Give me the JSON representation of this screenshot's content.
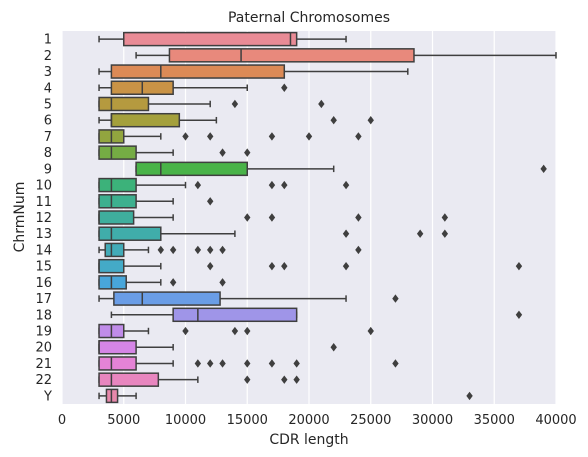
{
  "chart_data": {
    "type": "boxplot",
    "orientation": "horizontal",
    "title": "Paternal Chromosomes",
    "xlabel": "CDR length",
    "ylabel": "ChrmNum",
    "xlim": [
      0,
      40000
    ],
    "xticks": [
      0,
      5000,
      10000,
      15000,
      20000,
      25000,
      30000,
      35000,
      40000
    ],
    "grid": true,
    "background": "#eaeaf2",
    "categories": [
      {
        "label": "1",
        "whislo": 3000,
        "q1": 5000,
        "med": 18500,
        "q3": 19000,
        "whishi": 23000,
        "fliers": [],
        "color": "#e98b96"
      },
      {
        "label": "2",
        "whislo": 6000,
        "q1": 8700,
        "med": 14500,
        "q3": 28500,
        "whishi": 40000,
        "fliers": [],
        "color": "#e8897c"
      },
      {
        "label": "3",
        "whislo": 3000,
        "q1": 4000,
        "med": 8000,
        "q3": 18000,
        "whishi": 28000,
        "fliers": [],
        "color": "#dc8a56"
      },
      {
        "label": "4",
        "whislo": 3000,
        "q1": 4000,
        "med": 6500,
        "q3": 9000,
        "whishi": 15000,
        "fliers": [
          18000
        ],
        "color": "#c99346"
      },
      {
        "label": "5",
        "whislo": 3000,
        "q1": 3000,
        "med": 4000,
        "q3": 7000,
        "whishi": 12000,
        "fliers": [
          14000,
          21000
        ],
        "color": "#b59a3f"
      },
      {
        "label": "6",
        "whislo": 3000,
        "q1": 4000,
        "med": 4000,
        "q3": 9500,
        "whishi": 12500,
        "fliers": [
          22000,
          25000
        ],
        "color": "#a4a03c"
      },
      {
        "label": "7",
        "whislo": 3000,
        "q1": 3000,
        "med": 4000,
        "q3": 5000,
        "whishi": 8000,
        "fliers": [
          10000,
          12000,
          17000,
          20000,
          24000
        ],
        "color": "#92a53f"
      },
      {
        "label": "8",
        "whislo": 3000,
        "q1": 3000,
        "med": 4000,
        "q3": 6000,
        "whishi": 9000,
        "fliers": [
          13000,
          15000
        ],
        "color": "#75ac44"
      },
      {
        "label": "9",
        "whislo": 6000,
        "q1": 6000,
        "med": 8000,
        "q3": 15000,
        "whishi": 22000,
        "fliers": [
          39000
        ],
        "color": "#49b348"
      },
      {
        "label": "10",
        "whislo": 3000,
        "q1": 3000,
        "med": 4000,
        "q3": 6000,
        "whishi": 10000,
        "fliers": [
          11000,
          17000,
          18000,
          23000
        ],
        "color": "#3cb27a"
      },
      {
        "label": "11",
        "whislo": 3000,
        "q1": 3000,
        "med": 4000,
        "q3": 6000,
        "whishi": 9000,
        "fliers": [
          12000
        ],
        "color": "#3db08f"
      },
      {
        "label": "12",
        "whislo": 3000,
        "q1": 3000,
        "med": 3000,
        "q3": 5800,
        "whishi": 9000,
        "fliers": [
          15000,
          17000,
          24000,
          31000
        ],
        "color": "#3fae9d"
      },
      {
        "label": "13",
        "whislo": 3000,
        "q1": 3000,
        "med": 4000,
        "q3": 8000,
        "whishi": 14000,
        "fliers": [
          23000,
          29000,
          31000
        ],
        "color": "#40adaa"
      },
      {
        "label": "14",
        "whislo": 3000,
        "q1": 3500,
        "med": 4000,
        "q3": 5000,
        "whishi": 7000,
        "fliers": [
          8000,
          9000,
          11000,
          12000,
          13000,
          24000
        ],
        "color": "#42abb8"
      },
      {
        "label": "15",
        "whislo": 3000,
        "q1": 3000,
        "med": 3000,
        "q3": 5000,
        "whishi": 8000,
        "fliers": [
          12000,
          17000,
          18000,
          23000,
          37000
        ],
        "color": "#44aac7"
      },
      {
        "label": "16",
        "whislo": 3000,
        "q1": 3000,
        "med": 4000,
        "q3": 5200,
        "whishi": 8000,
        "fliers": [
          9000,
          13000
        ],
        "color": "#48a6da"
      },
      {
        "label": "17",
        "whislo": 3000,
        "q1": 4200,
        "med": 6500,
        "q3": 12800,
        "whishi": 23000,
        "fliers": [
          27000
        ],
        "color": "#6a9de6"
      },
      {
        "label": "18",
        "whislo": 4000,
        "q1": 9000,
        "med": 11000,
        "q3": 19000,
        "whishi": 19000,
        "fliers": [
          37000
        ],
        "color": "#9f95e8"
      },
      {
        "label": "19",
        "whislo": 3000,
        "q1": 3000,
        "med": 4000,
        "q3": 5000,
        "whishi": 7000,
        "fliers": [
          10000,
          14000,
          15000,
          25000
        ],
        "color": "#c08ce9"
      },
      {
        "label": "20",
        "whislo": 3000,
        "q1": 3000,
        "med": 3000,
        "q3": 6000,
        "whishi": 9000,
        "fliers": [
          22000
        ],
        "color": "#d585e6"
      },
      {
        "label": "21",
        "whislo": 3000,
        "q1": 3000,
        "med": 4000,
        "q3": 6000,
        "whishi": 9000,
        "fliers": [
          11000,
          12000,
          13000,
          15000,
          17000,
          19000,
          27000
        ],
        "color": "#e583d6"
      },
      {
        "label": "22",
        "whislo": 3000,
        "q1": 3000,
        "med": 4000,
        "q3": 7800,
        "whishi": 11000,
        "fliers": [
          15000,
          18000,
          19000
        ],
        "color": "#e886bf"
      },
      {
        "label": "Y",
        "whislo": 3000,
        "q1": 3600,
        "med": 4000,
        "q3": 4500,
        "whishi": 6000,
        "fliers": [
          33000
        ],
        "color": "#e788ab"
      }
    ]
  }
}
